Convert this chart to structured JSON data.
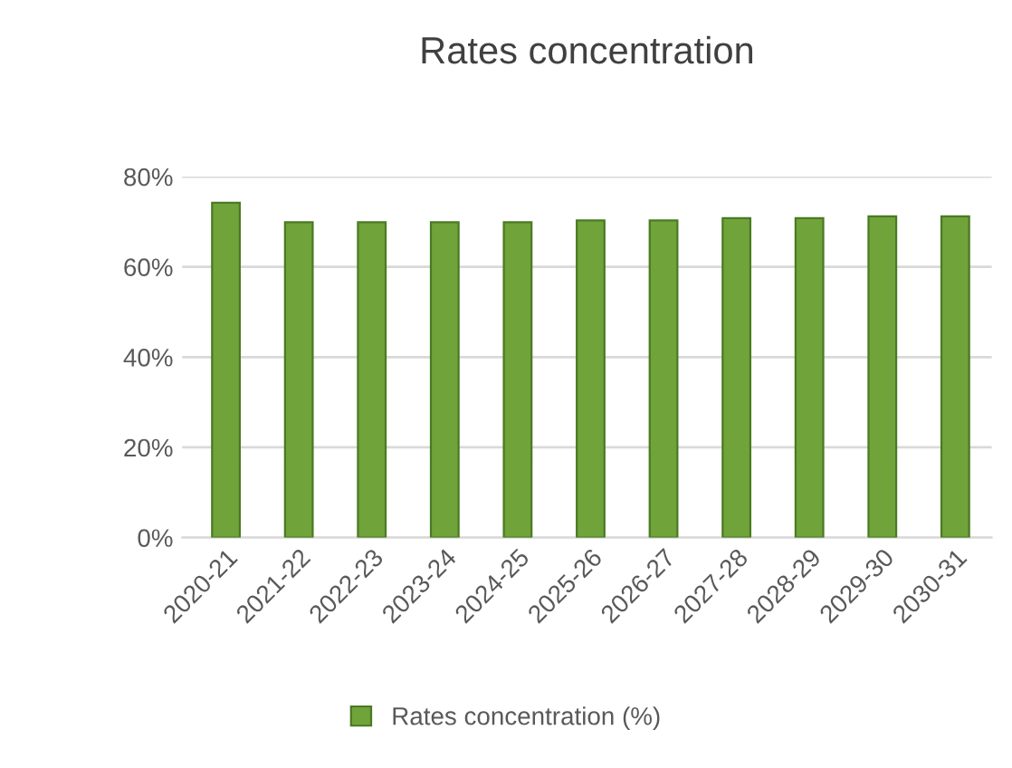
{
  "chart_data": {
    "type": "bar",
    "title": "Rates concentration",
    "categories": [
      "2020-21",
      "2021-22",
      "2022-23",
      "2023-24",
      "2024-25",
      "2025-26",
      "2026-27",
      "2027-28",
      "2028-29",
      "2029-30",
      "2030-31"
    ],
    "series": [
      {
        "name": "Rates concentration (%)",
        "color": "#70a33a",
        "values": [
          74.2,
          69.9,
          69.9,
          69.9,
          69.9,
          70.3,
          70.3,
          70.8,
          70.8,
          71.2,
          71.2
        ]
      }
    ],
    "ylim": [
      0,
      80
    ],
    "yticks": [
      {
        "value": 0,
        "label": "0%"
      },
      {
        "value": 20,
        "label": "20%"
      },
      {
        "value": 40,
        "label": "40%"
      },
      {
        "value": 60,
        "label": "60%"
      },
      {
        "value": 80,
        "label": "80%"
      }
    ],
    "grid": "y",
    "legend": "bottom"
  }
}
